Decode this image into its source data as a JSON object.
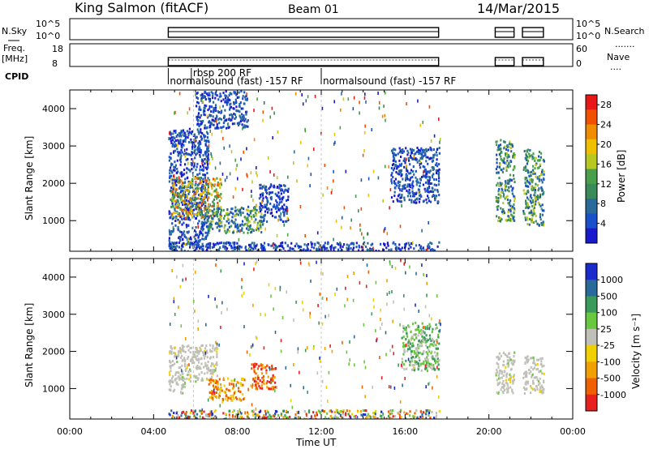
{
  "header": {
    "station": "King Salmon (fitACF)",
    "beam": "Beam 01",
    "date": "14/Mar/2015"
  },
  "top_panels": {
    "nsky_label": "N.Sky",
    "nsky_ticks": [
      "10^5",
      "10^0"
    ],
    "nsearch_label": "N.Search",
    "nsearch_ticks": [
      "10^5",
      "10^0"
    ],
    "freq_label": "Freq.",
    "freq_unit": "[MHz]",
    "freq_ticks": [
      "18",
      "8"
    ],
    "nave_label": "Nave",
    "nave_ticks": [
      "60",
      "0"
    ],
    "cpid_label": "CPID",
    "cpid_entries": [
      {
        "label": "rbsp 200 RF",
        "start_hr": 5.8,
        "end_hr": 6.0
      },
      {
        "label": "normalsound (fast) -157 RF",
        "start_hr": 4.7,
        "end_hr": 11.9
      },
      {
        "label": "normalsound (fast) -157 RF",
        "start_hr": 12.0,
        "end_hr": 17.6
      }
    ],
    "data_intervals_hr": [
      [
        4.7,
        17.6
      ],
      [
        20.3,
        21.2
      ],
      [
        21.6,
        22.6
      ]
    ]
  },
  "chart_data": [
    {
      "type": "heatmap",
      "name": "power",
      "ylabel": "Slant Range [km]",
      "ylim": [
        180,
        4500
      ],
      "y_ticks": [
        1000,
        2000,
        3000,
        4000
      ],
      "xlim_hr": [
        0,
        24
      ],
      "colorbar_label": "Power [dB]",
      "colorbar_ticks": [
        "4",
        "8",
        "12",
        "16",
        "20",
        "24",
        "28"
      ],
      "colorbar_range": [
        0,
        30
      ],
      "colors": [
        "#1a1acc",
        "#1a4fcc",
        "#2a6a9a",
        "#3a8a5a",
        "#4aa04a",
        "#b8c820",
        "#f0c000",
        "#f08c00",
        "#f05000",
        "#e81818"
      ],
      "regions": [
        {
          "t0": 4.7,
          "t1": 6.6,
          "r0": 300,
          "r1": 3500,
          "level": "low"
        },
        {
          "t0": 4.8,
          "t1": 7.2,
          "r0": 1100,
          "r1": 2200,
          "level": "high"
        },
        {
          "t0": 6.5,
          "t1": 9.2,
          "r0": 700,
          "r1": 1400,
          "level": "mid"
        },
        {
          "t0": 9.0,
          "t1": 10.4,
          "r0": 1000,
          "r1": 2000,
          "level": "low"
        },
        {
          "t0": 6.0,
          "t1": 8.5,
          "r0": 3500,
          "r1": 4500,
          "level": "low"
        },
        {
          "t0": 15.3,
          "t1": 17.6,
          "r0": 1500,
          "r1": 3000,
          "level": "low"
        },
        {
          "t0": 20.3,
          "t1": 21.2,
          "r0": 1000,
          "r1": 3200,
          "level": "mid"
        },
        {
          "t0": 21.6,
          "t1": 22.6,
          "r0": 900,
          "r1": 3000,
          "level": "mid"
        },
        {
          "t0": 4.7,
          "t1": 17.6,
          "r0": 200,
          "r1": 450,
          "level": "low"
        }
      ]
    },
    {
      "type": "heatmap",
      "name": "velocity",
      "ylabel": "Slant Range [km]",
      "ylim": [
        180,
        4500
      ],
      "y_ticks": [
        1000,
        2000,
        3000,
        4000
      ],
      "xlim_hr": [
        0,
        24
      ],
      "xlabel": "Time UT",
      "x_ticks": [
        "00:00",
        "04:00",
        "08:00",
        "12:00",
        "16:00",
        "20:00",
        "00:00"
      ],
      "colorbar_label": "Velocity [m s⁻¹]",
      "colorbar_ticks": [
        "1000",
        "500",
        "100",
        "25",
        "-25",
        "-100",
        "-500",
        "-1000"
      ],
      "colors": [
        "#1a2acc",
        "#2a6a9a",
        "#3a9a5a",
        "#6ac840",
        "#c0c0b8",
        "#f0d000",
        "#f0a000",
        "#f06000",
        "#e82020"
      ],
      "regions": [
        {
          "t0": 4.7,
          "t1": 7.0,
          "r0": 1200,
          "r1": 2200,
          "level": "ground"
        },
        {
          "t0": 4.7,
          "t1": 5.5,
          "r0": 900,
          "r1": 1200,
          "level": "ground"
        },
        {
          "t0": 6.6,
          "t1": 8.3,
          "r0": 700,
          "r1": 1300,
          "level": "neg"
        },
        {
          "t0": 8.6,
          "t1": 9.8,
          "r0": 1000,
          "r1": 1700,
          "level": "strongneg"
        },
        {
          "t0": 15.8,
          "t1": 17.6,
          "r0": 1500,
          "r1": 2800,
          "level": "pos"
        },
        {
          "t0": 20.3,
          "t1": 21.2,
          "r0": 900,
          "r1": 2000,
          "level": "ground"
        },
        {
          "t0": 21.6,
          "t1": 22.6,
          "r0": 900,
          "r1": 1900,
          "level": "ground"
        },
        {
          "t0": 4.7,
          "t1": 17.6,
          "r0": 200,
          "r1": 450,
          "level": "mixed"
        }
      ]
    }
  ]
}
